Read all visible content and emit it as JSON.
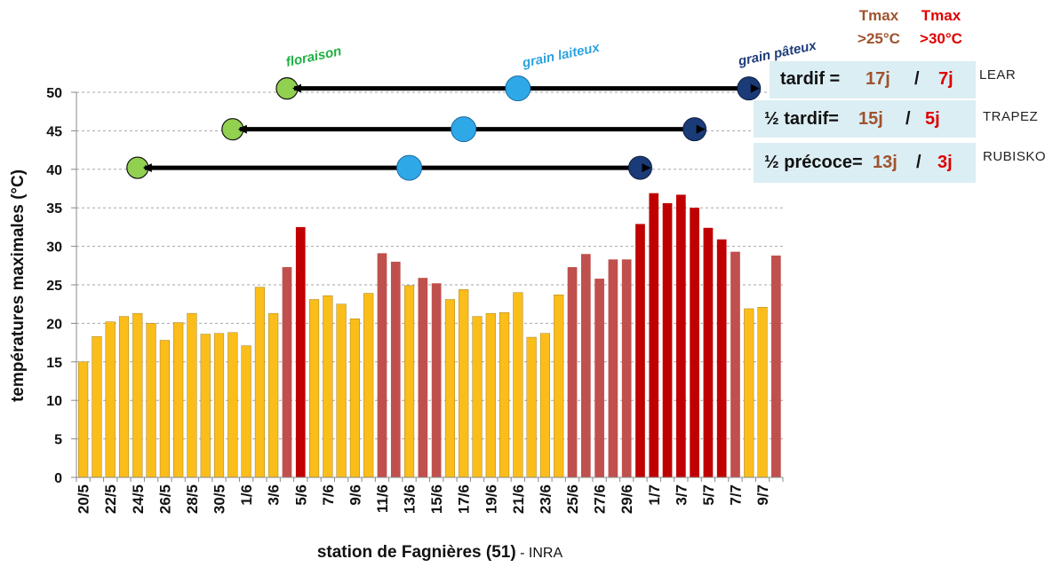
{
  "chart_data": {
    "type": "bar",
    "ylabel": "températures maximales (°C)",
    "xlabel_main": "station de Fagnières (51)",
    "xlabel_suffix": " - INRA",
    "ylim": [
      0,
      50
    ],
    "yticks": [
      0,
      5,
      10,
      15,
      20,
      25,
      30,
      35,
      40,
      45,
      50
    ],
    "grid": true,
    "categories": [
      "20/5",
      "21/5",
      "22/5",
      "23/5",
      "24/5",
      "25/5",
      "26/5",
      "27/5",
      "28/5",
      "29/5",
      "30/5",
      "31/5",
      "1/6",
      "2/6",
      "3/6",
      "4/6",
      "5/6",
      "6/6",
      "7/6",
      "8/6",
      "9/6",
      "10/6",
      "11/6",
      "12/6",
      "13/6",
      "14/6",
      "15/6",
      "16/6",
      "17/6",
      "18/6",
      "19/6",
      "20/6",
      "21/6",
      "22/6",
      "23/6",
      "24/6",
      "25/6",
      "26/6",
      "27/6",
      "28/6",
      "29/6",
      "30/6",
      "1/7",
      "2/7",
      "3/7",
      "4/7",
      "5/7",
      "6/7",
      "7/7",
      "8/7",
      "9/7",
      "10/7"
    ],
    "tick_labels": [
      "20/5",
      "22/5",
      "24/5",
      "26/5",
      "28/5",
      "30/5",
      "1/6",
      "3/6",
      "5/6",
      "7/6",
      "9/6",
      "11/6",
      "13/6",
      "15/6",
      "17/6",
      "19/6",
      "21/6",
      "23/6",
      "25/6",
      "27/6",
      "29/6",
      "1/7",
      "3/7",
      "5/7",
      "7/7",
      "9/7"
    ],
    "values": [
      15.0,
      18.3,
      20.2,
      20.9,
      21.3,
      20.0,
      17.8,
      20.1,
      21.3,
      18.6,
      18.7,
      18.8,
      17.1,
      24.7,
      21.3,
      27.3,
      32.5,
      23.1,
      23.6,
      22.5,
      20.6,
      23.9,
      29.1,
      28.0,
      24.9,
      25.9,
      25.2,
      23.1,
      24.4,
      20.9,
      21.3,
      21.4,
      24.0,
      18.2,
      18.7,
      23.7,
      27.3,
      29.0,
      25.8,
      28.3,
      28.3,
      32.9,
      36.9,
      35.6,
      36.7,
      35.0,
      32.4,
      30.9,
      29.3,
      21.9,
      22.1,
      28.8
    ],
    "bar_colors": {
      "below_25": "#fbbd19",
      "above_25": "#c0504d",
      "above_30": "#c00000",
      "outline": "#8a6d1a"
    },
    "stages": [
      {
        "name": "floraison",
        "color": "#1fb044"
      },
      {
        "name": "grain laiteux",
        "color": "#2ea3e0"
      },
      {
        "name": "grain pâteux",
        "color": "#1f3d7a"
      }
    ],
    "varieties": [
      {
        "variety": "LEAR",
        "y": 50.5,
        "start": "4/6",
        "milk": "21/6",
        "dough": "8/7",
        "start_color": "#92d050",
        "milk_color": "#2fa8e8",
        "dough_color": "#1b3a78"
      },
      {
        "variety": "TRAPEZ",
        "y": 45.2,
        "start": "31/5",
        "milk": "17/6",
        "dough": "4/7",
        "start_color": "#92d050",
        "milk_color": "#2fa8e8",
        "dough_color": "#1b3a78"
      },
      {
        "variety": "RUBISKO",
        "y": 40.2,
        "start": "24/5",
        "milk": "13/6",
        "dough": "30/6",
        "start_color": "#92d050",
        "milk_color": "#2fa8e8",
        "dough_color": "#1b3a78"
      }
    ]
  },
  "headers": [
    {
      "line1": "Tmax",
      "line2": ">25°C",
      "color": "#a0522d"
    },
    {
      "line1": "Tmax",
      "line2": ">30°C",
      "color": "#e00000"
    }
  ],
  "summary_rows": [
    {
      "label": "tardif =",
      "d25": "17j",
      "sep": "/",
      "d30": "7j",
      "variety": "LEAR"
    },
    {
      "label": "½ tardif=",
      "d25": "15j",
      "sep": "/",
      "d30": "5j",
      "variety": "TRAPEZ"
    },
    {
      "label": "½ précoce=",
      "d25": "13j",
      "sep": "/",
      "d30": "3j",
      "variety": "RUBISKO"
    }
  ],
  "colors": {
    "label": "#111111",
    "days25": "#a0522d",
    "days30": "#e00000",
    "box_bg": "#dbeef4"
  }
}
